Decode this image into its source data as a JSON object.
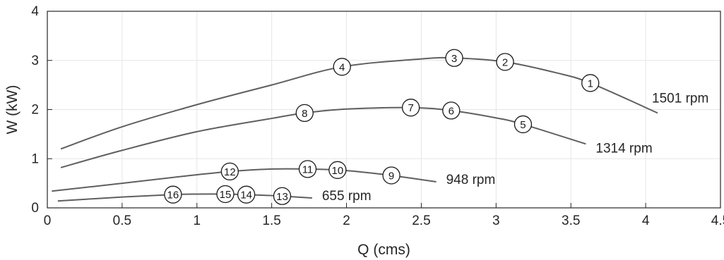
{
  "chart_data": {
    "type": "line",
    "xlabel": "Q (cms)",
    "ylabel": "W (kW)",
    "xlim": [
      0,
      4.5
    ],
    "ylim": [
      0,
      4
    ],
    "xticks": [
      "0",
      "0.5",
      "1",
      "1.5",
      "2",
      "2.5",
      "3",
      "3.5",
      "4",
      "4.5"
    ],
    "yticks": [
      "0",
      "1",
      "2",
      "3",
      "4"
    ],
    "grid": true,
    "series": [
      {
        "name": "1501 rpm",
        "x": [
          0.09,
          0.5,
          1.0,
          1.5,
          1.97,
          2.5,
          2.72,
          3.06,
          3.4,
          3.63,
          4.08
        ],
        "y": [
          1.2,
          1.65,
          2.1,
          2.5,
          2.87,
          3.03,
          3.05,
          2.97,
          2.75,
          2.54,
          1.93
        ],
        "markers": [
          {
            "label": "1",
            "x": 3.63,
            "y": 2.54
          },
          {
            "label": "2",
            "x": 3.06,
            "y": 2.97
          },
          {
            "label": "3",
            "x": 2.72,
            "y": 3.05
          },
          {
            "label": "4",
            "x": 1.97,
            "y": 2.87
          }
        ]
      },
      {
        "name": "1314 rpm",
        "x": [
          0.09,
          0.5,
          1.0,
          1.5,
          1.72,
          2.0,
          2.43,
          2.7,
          3.0,
          3.18,
          3.6
        ],
        "y": [
          0.82,
          1.17,
          1.55,
          1.82,
          1.93,
          2.01,
          2.04,
          1.98,
          1.83,
          1.7,
          1.3
        ],
        "markers": [
          {
            "label": "5",
            "x": 3.18,
            "y": 1.7
          },
          {
            "label": "6",
            "x": 2.7,
            "y": 1.98
          },
          {
            "label": "7",
            "x": 2.43,
            "y": 2.04
          },
          {
            "label": "8",
            "x": 1.72,
            "y": 1.93
          }
        ]
      },
      {
        "name": "948 rpm",
        "x": [
          0.03,
          0.5,
          0.9,
          1.22,
          1.5,
          1.74,
          1.94,
          2.1,
          2.3,
          2.6
        ],
        "y": [
          0.34,
          0.5,
          0.64,
          0.74,
          0.79,
          0.79,
          0.77,
          0.73,
          0.66,
          0.53
        ],
        "markers": [
          {
            "label": "9",
            "x": 2.3,
            "y": 0.66
          },
          {
            "label": "10",
            "x": 1.94,
            "y": 0.77
          },
          {
            "label": "11",
            "x": 1.74,
            "y": 0.79
          },
          {
            "label": "12",
            "x": 1.22,
            "y": 0.74
          }
        ]
      },
      {
        "name": "655 rpm",
        "x": [
          0.07,
          0.5,
          0.84,
          1.0,
          1.19,
          1.33,
          1.5,
          1.57,
          1.77
        ],
        "y": [
          0.14,
          0.22,
          0.27,
          0.28,
          0.28,
          0.27,
          0.25,
          0.24,
          0.2
        ],
        "markers": [
          {
            "label": "13",
            "x": 1.57,
            "y": 0.24
          },
          {
            "label": "14",
            "x": 1.33,
            "y": 0.27
          },
          {
            "label": "15",
            "x": 1.19,
            "y": 0.28
          },
          {
            "label": "16",
            "x": 0.84,
            "y": 0.27
          }
        ]
      }
    ]
  }
}
